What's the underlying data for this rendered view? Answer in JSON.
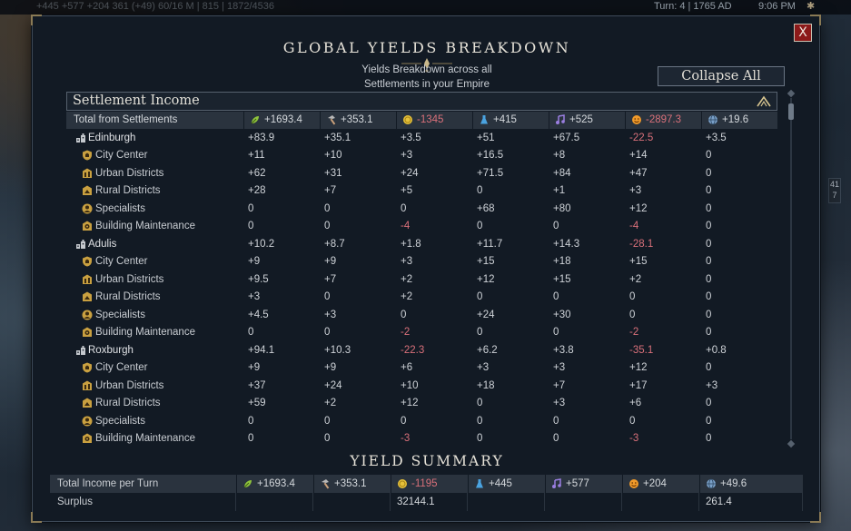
{
  "topbar": {
    "resources_text": "+445   +577   +204   361 (+49)   60/16   M | 815 | 1872/4536",
    "turn": "Turn: 4 | 1765 AD",
    "clock": "9:06 PM"
  },
  "side_badge": {
    "top": "41",
    "bottom": "7"
  },
  "window": {
    "title": "GLOBAL YIELDS BREAKDOWN",
    "subtitle_line1": "Yields Breakdown across all",
    "subtitle_line2": "Settlements in your Empire",
    "collapse_label": "Collapse All",
    "close_label": "X"
  },
  "section": {
    "label": "Settlement Income"
  },
  "yield_icons": [
    "food-icon",
    "production-icon",
    "gold-icon",
    "science-icon",
    "culture-icon",
    "happiness-icon",
    "influence-icon"
  ],
  "colors": {
    "food": "#8fc43c",
    "production": "#c9a07a",
    "gold": "#e6c23a",
    "science": "#4aa3e0",
    "culture": "#9a7ee0",
    "happiness": "#f09a2a",
    "influence": "#7aa0c8",
    "negative": "#d9707a"
  },
  "totals": {
    "label": "Total from Settlements",
    "values": [
      "+1693.4",
      "+353.1",
      "-1345",
      "+415",
      "+525",
      "-2897.3",
      "+19.6"
    ]
  },
  "rows": [
    {
      "kind": "settlement",
      "icon": "settlement-icon",
      "name": "Edinburgh",
      "values": [
        "+83.9",
        "+35.1",
        "+3.5",
        "+51",
        "+67.5",
        "-22.5",
        "+3.5"
      ]
    },
    {
      "kind": "sub",
      "icon": "city-center-icon",
      "name": "City Center",
      "values": [
        "+11",
        "+10",
        "+3",
        "+16.5",
        "+8",
        "+14",
        "0"
      ]
    },
    {
      "kind": "sub",
      "icon": "urban-district-icon",
      "name": "Urban Districts",
      "values": [
        "+62",
        "+31",
        "+24",
        "+71.5",
        "+84",
        "+47",
        "0"
      ]
    },
    {
      "kind": "sub",
      "icon": "rural-district-icon",
      "name": "Rural Districts",
      "values": [
        "+28",
        "+7",
        "+5",
        "0",
        "+1",
        "+3",
        "0"
      ]
    },
    {
      "kind": "sub",
      "icon": "specialist-icon",
      "name": "Specialists",
      "values": [
        "0",
        "0",
        "0",
        "+68",
        "+80",
        "+12",
        "0"
      ]
    },
    {
      "kind": "sub",
      "icon": "maintenance-icon",
      "name": "Building Maintenance",
      "values": [
        "0",
        "0",
        "-4",
        "0",
        "0",
        "-4",
        "0"
      ]
    },
    {
      "kind": "settlement",
      "icon": "settlement-icon",
      "name": "Adulis",
      "values": [
        "+10.2",
        "+8.7",
        "+1.8",
        "+11.7",
        "+14.3",
        "-28.1",
        "0"
      ]
    },
    {
      "kind": "sub",
      "icon": "city-center-icon",
      "name": "City Center",
      "values": [
        "+9",
        "+9",
        "+3",
        "+15",
        "+18",
        "+15",
        "0"
      ]
    },
    {
      "kind": "sub",
      "icon": "urban-district-icon",
      "name": "Urban Districts",
      "values": [
        "+9.5",
        "+7",
        "+2",
        "+12",
        "+15",
        "+2",
        "0"
      ]
    },
    {
      "kind": "sub",
      "icon": "rural-district-icon",
      "name": "Rural Districts",
      "values": [
        "+3",
        "0",
        "+2",
        "0",
        "0",
        "0",
        "0"
      ]
    },
    {
      "kind": "sub",
      "icon": "specialist-icon",
      "name": "Specialists",
      "values": [
        "+4.5",
        "+3",
        "0",
        "+24",
        "+30",
        "0",
        "0"
      ]
    },
    {
      "kind": "sub",
      "icon": "maintenance-icon",
      "name": "Building Maintenance",
      "values": [
        "0",
        "0",
        "-2",
        "0",
        "0",
        "-2",
        "0"
      ]
    },
    {
      "kind": "settlement",
      "icon": "settlement-icon",
      "name": "Roxburgh",
      "values": [
        "+94.1",
        "+10.3",
        "-22.3",
        "+6.2",
        "+3.8",
        "-35.1",
        "+0.8"
      ]
    },
    {
      "kind": "sub",
      "icon": "city-center-icon",
      "name": "City Center",
      "values": [
        "+9",
        "+9",
        "+6",
        "+3",
        "+3",
        "+12",
        "0"
      ]
    },
    {
      "kind": "sub",
      "icon": "urban-district-icon",
      "name": "Urban Districts",
      "values": [
        "+37",
        "+24",
        "+10",
        "+18",
        "+7",
        "+17",
        "+3"
      ]
    },
    {
      "kind": "sub",
      "icon": "rural-district-icon",
      "name": "Rural Districts",
      "values": [
        "+59",
        "+2",
        "+12",
        "0",
        "+3",
        "+6",
        "0"
      ]
    },
    {
      "kind": "sub",
      "icon": "specialist-icon",
      "name": "Specialists",
      "values": [
        "0",
        "0",
        "0",
        "0",
        "0",
        "0",
        "0"
      ]
    },
    {
      "kind": "sub",
      "icon": "maintenance-icon",
      "name": "Building Maintenance",
      "values": [
        "0",
        "0",
        "-3",
        "0",
        "0",
        "-3",
        "0"
      ]
    }
  ],
  "summary": {
    "title": "YIELD SUMMARY",
    "income_label": "Total Income per Turn",
    "income_values": [
      "+1693.4",
      "+353.1",
      "-1195",
      "+445",
      "+577",
      "+204",
      "+49.6"
    ],
    "surplus_label": "Surplus",
    "surplus_values": [
      "",
      "",
      "32144.1",
      "",
      "",
      "",
      "261.4"
    ]
  }
}
